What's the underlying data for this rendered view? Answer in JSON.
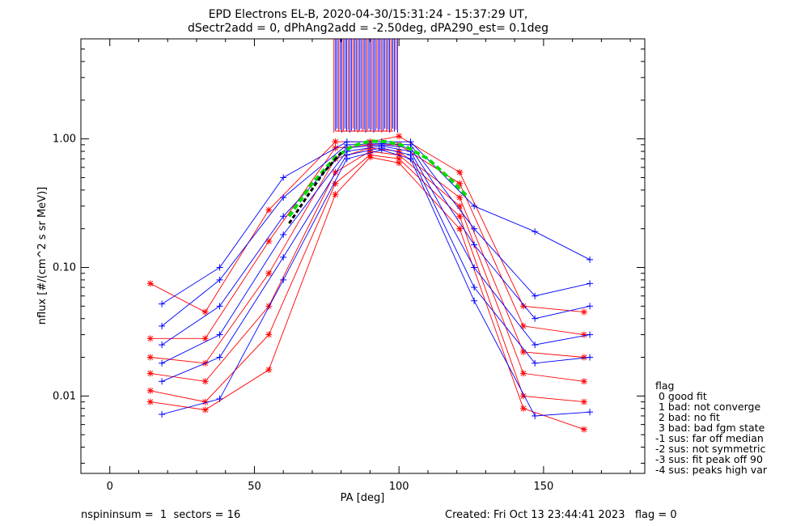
{
  "chart_data": {
    "type": "line",
    "title": "EPD Electrons EL-B, 2020-04-30/15:31:24 - 15:37:29 UT,",
    "subtitle": "dSectr2add = 0, dPhAng2add = -2.50deg, dPA290_est=   0.1deg",
    "xlabel": "PA [deg]",
    "ylabel": "nflux [#/(cm^2 s sr MeV)]",
    "xlim": [
      -10,
      185
    ],
    "ylim": [
      0.0025,
      6.0
    ],
    "yscale": "log",
    "xticks": [
      0,
      50,
      100,
      150
    ],
    "xtick_labels": [
      "0",
      "50",
      "100",
      "150"
    ],
    "yticks": [
      0.01,
      0.1,
      1.0
    ],
    "ytick_labels": [
      "0.01",
      "0.10",
      "1.00"
    ],
    "grid": false,
    "colors": {
      "down_sectors": "#ff0000",
      "up_sectors": "#0000ff",
      "fit_curve": "#00dd00",
      "fit_core": "#000000"
    },
    "series": [
      {
        "color": "#ff0000",
        "x": [
          14,
          33,
          55,
          78,
          90,
          100,
          121,
          143,
          164
        ],
        "y": [
          0.075,
          0.045,
          0.28,
          0.95,
          0.95,
          1.05,
          0.55,
          0.05,
          0.045
        ]
      },
      {
        "color": "#ff0000",
        "x": [
          14,
          33,
          55,
          78,
          90,
          100,
          121,
          143,
          164
        ],
        "y": [
          0.028,
          0.028,
          0.16,
          0.85,
          0.9,
          0.9,
          0.45,
          0.035,
          0.03
        ]
      },
      {
        "color": "#ff0000",
        "x": [
          14,
          33,
          55,
          78,
          90,
          100,
          121,
          143,
          164
        ],
        "y": [
          0.02,
          0.018,
          0.09,
          0.7,
          0.85,
          0.8,
          0.35,
          0.022,
          0.02
        ]
      },
      {
        "color": "#ff0000",
        "x": [
          14,
          33,
          55,
          78,
          90,
          100,
          121,
          143,
          164
        ],
        "y": [
          0.015,
          0.013,
          0.05,
          0.55,
          0.8,
          0.75,
          0.3,
          0.015,
          0.013
        ]
      },
      {
        "color": "#ff0000",
        "x": [
          14,
          33,
          55,
          78,
          90,
          100,
          121,
          143,
          164
        ],
        "y": [
          0.011,
          0.009,
          0.03,
          0.45,
          0.75,
          0.7,
          0.25,
          0.01,
          0.009
        ]
      },
      {
        "color": "#ff0000",
        "x": [
          14,
          33,
          55,
          78,
          90,
          100,
          121,
          143,
          164
        ],
        "y": [
          0.009,
          0.0078,
          0.016,
          0.37,
          0.72,
          0.65,
          0.2,
          0.008,
          0.0055
        ]
      },
      {
        "color": "#0000ff",
        "x": [
          18,
          38,
          60,
          82,
          94,
          104,
          126,
          147,
          166
        ],
        "y": [
          0.052,
          0.1,
          0.5,
          0.95,
          0.95,
          0.95,
          0.3,
          0.19,
          0.115
        ]
      },
      {
        "color": "#0000ff",
        "x": [
          18,
          38,
          60,
          82,
          94,
          104,
          126,
          147,
          166
        ],
        "y": [
          0.035,
          0.08,
          0.35,
          0.9,
          0.92,
          0.9,
          0.2,
          0.06,
          0.075
        ]
      },
      {
        "color": "#0000ff",
        "x": [
          18,
          38,
          60,
          82,
          94,
          104,
          126,
          147,
          166
        ],
        "y": [
          0.025,
          0.05,
          0.25,
          0.85,
          0.9,
          0.85,
          0.15,
          0.04,
          0.05
        ]
      },
      {
        "color": "#0000ff",
        "x": [
          18,
          38,
          60,
          82,
          94,
          104,
          126,
          147,
          166
        ],
        "y": [
          0.018,
          0.03,
          0.18,
          0.8,
          0.88,
          0.8,
          0.1,
          0.025,
          0.03
        ]
      },
      {
        "color": "#0000ff",
        "x": [
          18,
          38,
          60,
          82,
          94,
          104,
          126,
          147,
          166
        ],
        "y": [
          0.013,
          0.02,
          0.12,
          0.75,
          0.85,
          0.75,
          0.07,
          0.018,
          0.02
        ]
      },
      {
        "color": "#0000ff",
        "x": [
          18,
          38,
          60,
          82,
          94,
          104,
          126,
          147,
          166
        ],
        "y": [
          0.0072,
          0.0095,
          0.08,
          0.7,
          0.82,
          0.7,
          0.055,
          0.007,
          0.0075
        ]
      }
    ],
    "fit_curve": {
      "color": "#00dd00",
      "style": "dashed",
      "x": [
        62,
        70,
        78,
        84,
        90,
        96,
        102,
        110,
        118,
        124
      ],
      "y": [
        0.25,
        0.45,
        0.72,
        0.88,
        0.96,
        0.95,
        0.88,
        0.7,
        0.48,
        0.35
      ]
    },
    "fit_core": {
      "color": "#000000",
      "style": "dashed",
      "x": [
        62,
        68,
        74,
        80
      ],
      "y": [
        0.22,
        0.35,
        0.55,
        0.78
      ]
    },
    "legend": {
      "placement": "right-bottom",
      "title": "flag",
      "entries": [
        " 0 good fit",
        " 1 bad: not converge",
        " 2 bad: no fit",
        " 3 bad: bad fgm state",
        "-1 sus: far off median",
        "-2 sus: not symmetric",
        "-3 sus: fit peak off 90",
        "-4 sus: peaks high var"
      ]
    }
  },
  "footer": {
    "left": "nspininsum =  1  sectors = 16",
    "right": "Created: Fri Oct 13 23:44:41 2023   flag = 0"
  }
}
